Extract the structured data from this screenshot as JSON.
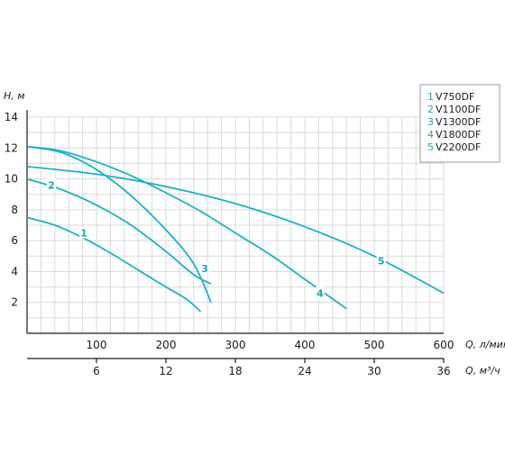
{
  "chart_data": {
    "type": "line",
    "ylabel": "H, м",
    "xlabel": "Q, л/мин",
    "x2label": "Q, м³/ч",
    "xlim": [
      0,
      600
    ],
    "ylim": [
      0,
      14
    ],
    "xticks": [
      100,
      200,
      300,
      400,
      500,
      600
    ],
    "yticks": [
      2,
      4,
      6,
      8,
      10,
      12,
      14
    ],
    "x2ticks": [
      6,
      12,
      18,
      24,
      30,
      36
    ],
    "grid": true,
    "legend_position": "top-right",
    "accent_color": "#1bb3c4",
    "series": [
      {
        "id": "1",
        "name": "V750DF",
        "x": [
          0,
          40,
          80,
          120,
          160,
          200,
          230,
          250
        ],
        "y": [
          7.5,
          7.0,
          6.2,
          5.2,
          4.1,
          3.0,
          2.2,
          1.4
        ],
        "label_at": [
          82,
          6.5
        ]
      },
      {
        "id": "2",
        "name": "V1100DF",
        "x": [
          0,
          50,
          100,
          150,
          200,
          240,
          265
        ],
        "y": [
          10.0,
          9.3,
          8.3,
          7.0,
          5.3,
          3.8,
          3.2
        ],
        "label_at": [
          35,
          9.6
        ]
      },
      {
        "id": "3",
        "name": "V1300DF",
        "x": [
          0,
          50,
          100,
          150,
          200,
          240,
          265
        ],
        "y": [
          12.1,
          11.7,
          10.6,
          8.9,
          6.7,
          4.5,
          2.0
        ],
        "label_at": [
          256,
          4.2
        ]
      },
      {
        "id": "4",
        "name": "V1800DF",
        "x": [
          0,
          50,
          100,
          150,
          200,
          250,
          300,
          350,
          400,
          460
        ],
        "y": [
          12.1,
          11.8,
          11.1,
          10.2,
          9.1,
          7.9,
          6.5,
          5.1,
          3.5,
          1.6
        ],
        "label_at": [
          422,
          2.6
        ]
      },
      {
        "id": "5",
        "name": "V2200DF",
        "x": [
          0,
          100,
          200,
          300,
          400,
          500,
          600
        ],
        "y": [
          10.8,
          10.3,
          9.5,
          8.4,
          6.9,
          5.0,
          2.6
        ],
        "label_at": [
          510,
          4.7
        ]
      }
    ]
  }
}
